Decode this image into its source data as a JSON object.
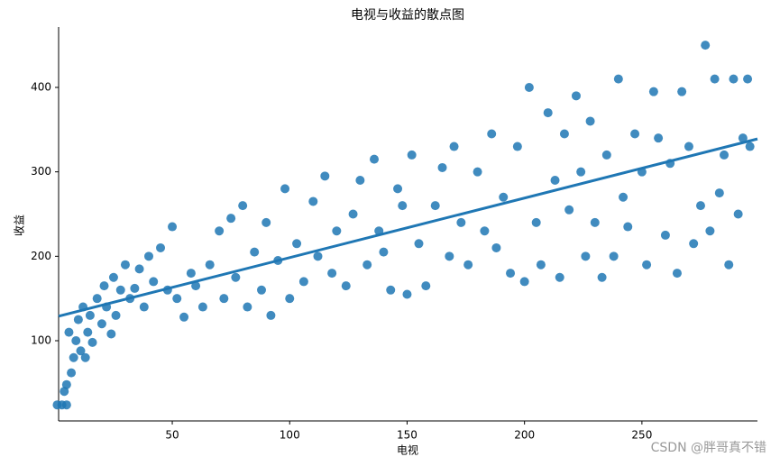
{
  "chart_data": {
    "type": "scatter",
    "title": "电视与收益的散点图",
    "xlabel": "电视",
    "ylabel": "收益",
    "xlim": [
      1.6,
      299.2
    ],
    "ylim": [
      5,
      471.5
    ],
    "xticks": [
      50,
      100,
      150,
      200,
      250
    ],
    "yticks": [
      100,
      200,
      300,
      400
    ],
    "series": [
      {
        "color": "#1f77b4",
        "x": [
          1,
          3,
          5,
          4,
          5,
          7,
          8,
          6,
          9,
          10,
          11,
          12,
          13,
          14,
          15,
          16,
          18,
          20,
          21,
          22,
          24,
          25,
          26,
          28,
          30,
          32,
          34,
          36,
          38,
          40,
          42,
          45,
          48,
          50,
          52,
          55,
          58,
          60,
          63,
          66,
          70,
          72,
          75,
          77,
          80,
          82,
          85,
          88,
          90,
          92,
          95,
          98,
          100,
          103,
          106,
          110,
          112,
          115,
          118,
          120,
          124,
          127,
          130,
          133,
          136,
          138,
          140,
          143,
          146,
          148,
          150,
          152,
          155,
          158,
          162,
          165,
          168,
          170,
          173,
          176,
          180,
          183,
          186,
          188,
          191,
          194,
          197,
          200,
          202,
          205,
          207,
          210,
          213,
          215,
          217,
          219,
          222,
          224,
          226,
          228,
          230,
          233,
          235,
          238,
          240,
          242,
          244,
          247,
          250,
          252,
          255,
          257,
          260,
          262,
          265,
          267,
          270,
          272,
          275,
          277,
          279,
          281,
          283,
          285,
          287,
          289,
          291,
          293,
          295,
          296
        ],
        "values": [
          24,
          24,
          48,
          40,
          24,
          62,
          80,
          110,
          100,
          125,
          88,
          140,
          80,
          110,
          130,
          98,
          150,
          120,
          165,
          140,
          108,
          175,
          130,
          160,
          190,
          150,
          162,
          185,
          140,
          200,
          170,
          210,
          160,
          235,
          150,
          128,
          180,
          165,
          140,
          190,
          230,
          150,
          245,
          175,
          260,
          140,
          205,
          160,
          240,
          130,
          195,
          280,
          150,
          215,
          170,
          265,
          200,
          295,
          180,
          230,
          165,
          250,
          290,
          190,
          315,
          230,
          205,
          160,
          280,
          260,
          155,
          320,
          215,
          165,
          260,
          305,
          200,
          330,
          240,
          190,
          300,
          230,
          345,
          210,
          270,
          180,
          330,
          170,
          400,
          240,
          190,
          370,
          290,
          175,
          345,
          255,
          390,
          300,
          200,
          360,
          240,
          175,
          320,
          200,
          410,
          270,
          235,
          345,
          300,
          190,
          395,
          340,
          225,
          310,
          180,
          395,
          330,
          215,
          260,
          450,
          230,
          410,
          275,
          320,
          190,
          410,
          250,
          340,
          410,
          330
        ]
      }
    ],
    "regression_line": {
      "color": "#1f77b4",
      "x": [
        1.6,
        299.2
      ],
      "values": [
        129,
        339
      ]
    },
    "watermark": "CSDN @胖哥真不错"
  }
}
